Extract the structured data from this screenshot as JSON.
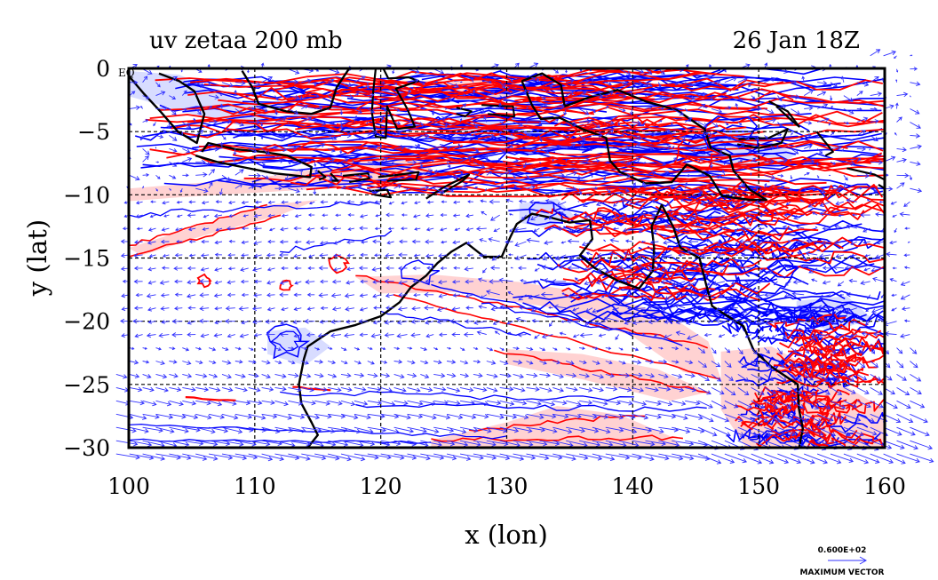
{
  "title_left": "uv zetaa 200 mb",
  "title_right": "26 Jan 18Z",
  "eq_label": "EQ",
  "xlabel": "x (lon)",
  "ylabel": "y (lat)",
  "vector_key_value": "0.600E+02",
  "vector_key_label": "MAXIMUM VECTOR",
  "x_ticks": [
    100,
    110,
    120,
    130,
    140,
    150,
    160
  ],
  "y_ticks": [
    0,
    -5,
    -10,
    -15,
    -20,
    -25,
    -30
  ],
  "y_tick_labels": [
    "0",
    "−5",
    "−10",
    "−15",
    "−20",
    "−25",
    "−30"
  ],
  "map_extent": {
    "lon": [
      100,
      160
    ],
    "lat": [
      -30,
      0
    ]
  },
  "colors": {
    "positive_contour": "#ff0000",
    "positive_fill": "#ffd2d2",
    "negative_contour": "#0000ff",
    "negative_fill": "#d8dcff",
    "vectors": "#3030ff",
    "coastline": "#000000"
  }
}
